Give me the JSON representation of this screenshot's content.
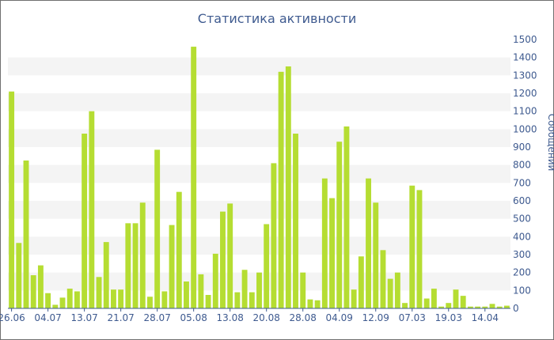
{
  "chart_data": {
    "type": "bar",
    "title": "Статистика активности",
    "ylabel": "Сообщений",
    "xlabel": "",
    "ylim": [
      0,
      1500
    ],
    "y_ticks": [
      0,
      100,
      200,
      300,
      400,
      500,
      600,
      700,
      800,
      900,
      1000,
      1100,
      1200,
      1300,
      1400,
      1500
    ],
    "y_axis_side": "right",
    "grid": "alternating horizontal bands",
    "bar_color": "#b5dd32",
    "x_tick_labels": [
      {
        "label": "26.06",
        "index": 0
      },
      {
        "label": "04.07",
        "index": 5
      },
      {
        "label": "13.07",
        "index": 10
      },
      {
        "label": "21.07",
        "index": 15
      },
      {
        "label": "28.07",
        "index": 20
      },
      {
        "label": "05.08",
        "index": 25
      },
      {
        "label": "13.08",
        "index": 30
      },
      {
        "label": "20.08",
        "index": 35
      },
      {
        "label": "28.08",
        "index": 40
      },
      {
        "label": "04.09",
        "index": 45
      },
      {
        "label": "12.09",
        "index": 50
      },
      {
        "label": "07.03",
        "index": 55
      },
      {
        "label": "19.03",
        "index": 60
      },
      {
        "label": "14.04",
        "index": 65
      }
    ],
    "values": [
      1210,
      365,
      825,
      185,
      240,
      85,
      20,
      60,
      110,
      95,
      975,
      1100,
      175,
      370,
      105,
      105,
      475,
      475,
      590,
      65,
      885,
      95,
      465,
      650,
      150,
      1460,
      190,
      75,
      305,
      540,
      585,
      90,
      215,
      90,
      200,
      470,
      810,
      1320,
      1350,
      975,
      200,
      50,
      45,
      725,
      615,
      930,
      1015,
      105,
      290,
      725,
      590,
      325,
      165,
      200,
      30,
      685,
      660,
      55,
      110,
      10,
      30,
      105,
      70,
      10,
      10,
      10,
      25,
      10,
      15
    ]
  }
}
